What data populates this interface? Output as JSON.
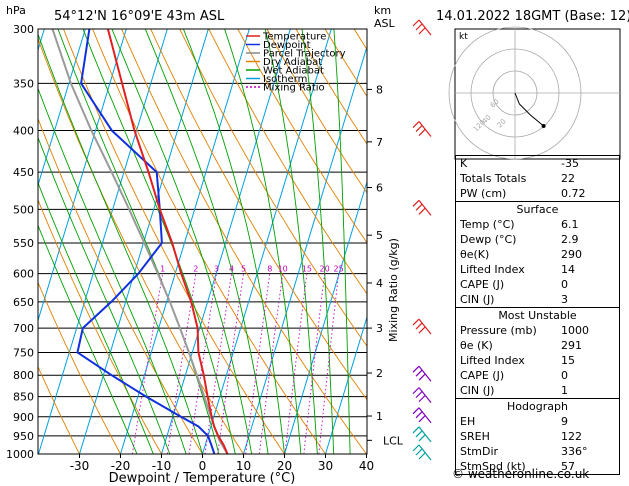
{
  "chart_data": {
    "type": "skew-t",
    "header": {
      "left": "54°12'N 16°09'E 43m ASL",
      "right": "14.01.2022 18GMT (Base: 12)"
    },
    "units": {
      "pressure": "hPa",
      "height": "km",
      "height_sub": "ASL"
    },
    "xlabel": "Dewpoint / Temperature (°C)",
    "ylabel_right": "Mixing Ratio (g/kg)",
    "pressure_ticks": [
      300,
      350,
      400,
      450,
      500,
      550,
      600,
      650,
      700,
      750,
      800,
      850,
      900,
      950,
      1000
    ],
    "temp_ticks": [
      -30,
      -20,
      -10,
      0,
      10,
      20,
      30,
      40
    ],
    "height_ticks": [
      {
        "label": "8",
        "p": 356
      },
      {
        "label": "7",
        "p": 413
      },
      {
        "label": "6",
        "p": 470
      },
      {
        "label": "5",
        "p": 538
      },
      {
        "label": "4",
        "p": 616
      },
      {
        "label": "3",
        "p": 700
      },
      {
        "label": "2",
        "p": 795
      },
      {
        "label": "1",
        "p": 898
      },
      {
        "label": "LCL",
        "p": 962
      }
    ],
    "mixing_ratio_labels": [
      "1",
      "2",
      "3",
      "4",
      "5",
      "8",
      "10",
      "15",
      "20",
      "25"
    ],
    "mixing_ratio_values": [
      1,
      2,
      3,
      4,
      5,
      8,
      10,
      15,
      20,
      25
    ],
    "legend": [
      {
        "name": "Temperature",
        "color": "#e02020"
      },
      {
        "name": "Dewpoint",
        "color": "#1030e0"
      },
      {
        "name": "Parcel Trajectory",
        "color": "#888888"
      },
      {
        "name": "Dry Adiabat",
        "color": "#e08000"
      },
      {
        "name": "Wet Adiabat",
        "color": "#00a000"
      },
      {
        "name": "Isotherm",
        "color": "#00a0e0"
      },
      {
        "name": "Mixing Ratio",
        "color": "#c000c0"
      }
    ],
    "temperature": [
      {
        "p": 1000,
        "t": 6.1
      },
      {
        "p": 975,
        "t": 4.5
      },
      {
        "p": 950,
        "t": 2.5
      },
      {
        "p": 925,
        "t": 0.8
      },
      {
        "p": 900,
        "t": -0.5
      },
      {
        "p": 850,
        "t": -3.0
      },
      {
        "p": 800,
        "t": -5.5
      },
      {
        "p": 750,
        "t": -8.5
      },
      {
        "p": 700,
        "t": -10.5
      },
      {
        "p": 650,
        "t": -14.0
      },
      {
        "p": 600,
        "t": -18.5
      },
      {
        "p": 550,
        "t": -23.0
      },
      {
        "p": 500,
        "t": -28.5
      },
      {
        "p": 450,
        "t": -34.0
      },
      {
        "p": 400,
        "t": -40.5
      },
      {
        "p": 350,
        "t": -47.0
      },
      {
        "p": 300,
        "t": -54.5
      }
    ],
    "dewpoint": [
      {
        "p": 1000,
        "t": 2.9
      },
      {
        "p": 975,
        "t": 1.5
      },
      {
        "p": 950,
        "t": 0.0
      },
      {
        "p": 925,
        "t": -3.0
      },
      {
        "p": 900,
        "t": -8.0
      },
      {
        "p": 850,
        "t": -18.0
      },
      {
        "p": 800,
        "t": -28.0
      },
      {
        "p": 750,
        "t": -38.0
      },
      {
        "p": 700,
        "t": -38.5
      },
      {
        "p": 650,
        "t": -33.5
      },
      {
        "p": 600,
        "t": -29.0
      },
      {
        "p": 550,
        "t": -25.5
      },
      {
        "p": 500,
        "t": -28.5
      },
      {
        "p": 450,
        "t": -32.0
      },
      {
        "p": 400,
        "t": -46.0
      },
      {
        "p": 350,
        "t": -57.0
      },
      {
        "p": 300,
        "t": -59.0
      }
    ],
    "parcel": [
      {
        "p": 1000,
        "t": 6.1
      },
      {
        "p": 962,
        "t": 3.1
      },
      {
        "p": 900,
        "t": -0.7
      },
      {
        "p": 850,
        "t": -3.8
      },
      {
        "p": 800,
        "t": -7.2
      },
      {
        "p": 750,
        "t": -10.8
      },
      {
        "p": 700,
        "t": -14.8
      },
      {
        "p": 650,
        "t": -19.2
      },
      {
        "p": 600,
        "t": -24.2
      },
      {
        "p": 550,
        "t": -29.8
      },
      {
        "p": 500,
        "t": -36.0
      },
      {
        "p": 450,
        "t": -43.0
      },
      {
        "p": 400,
        "t": -51.0
      },
      {
        "p": 350,
        "t": -59.5
      },
      {
        "p": 300,
        "t": -68.0
      }
    ],
    "wind_barbs": [
      {
        "p": 300,
        "color": "#e02020"
      },
      {
        "p": 400,
        "color": "#e02020"
      },
      {
        "p": 500,
        "color": "#e02020"
      },
      {
        "p": 700,
        "color": "#e02020"
      },
      {
        "p": 800,
        "color": "#8000c0"
      },
      {
        "p": 850,
        "color": "#8000c0"
      },
      {
        "p": 900,
        "color": "#8000c0"
      },
      {
        "p": 950,
        "color": "#00a0a0"
      },
      {
        "p": 1000,
        "color": "#00a0a0"
      }
    ],
    "hodograph": {
      "label": "kt",
      "ring_labels": [
        "20",
        "40",
        "120",
        "60"
      ],
      "trace_kt": [
        [
          0,
          0
        ],
        [
          2,
          -5
        ],
        [
          4,
          -10
        ],
        [
          8,
          -14
        ],
        [
          14,
          -20
        ],
        [
          26,
          -30
        ]
      ]
    }
  },
  "indices": [
    {
      "label": "K",
      "value": "-35"
    },
    {
      "label": "Totals Totals",
      "value": "22"
    },
    {
      "label": "PW (cm)",
      "value": "0.72"
    }
  ],
  "surface": {
    "title": "Surface",
    "rows": [
      {
        "label": "Temp (°C)",
        "value": "6.1"
      },
      {
        "label": "Dewp (°C)",
        "value": "2.9"
      },
      {
        "label": "θe(K)",
        "value": "290"
      },
      {
        "label": "Lifted Index",
        "value": "14"
      },
      {
        "label": "CAPE (J)",
        "value": "0"
      },
      {
        "label": "CIN (J)",
        "value": "3"
      }
    ]
  },
  "most_unstable": {
    "title": "Most Unstable",
    "rows": [
      {
        "label": "Pressure (mb)",
        "value": "1000"
      },
      {
        "label": "θe (K)",
        "value": "291"
      },
      {
        "label": "Lifted Index",
        "value": "15"
      },
      {
        "label": "CAPE (J)",
        "value": "0"
      },
      {
        "label": "CIN (J)",
        "value": "1"
      }
    ]
  },
  "hodograph_table": {
    "title": "Hodograph",
    "rows": [
      {
        "label": "EH",
        "value": "9"
      },
      {
        "label": "SREH",
        "value": "122"
      },
      {
        "label": "StmDir",
        "value": "336°"
      },
      {
        "label": "StmSpd (kt)",
        "value": "57"
      }
    ]
  },
  "footer": "© weatheronline.co.uk"
}
